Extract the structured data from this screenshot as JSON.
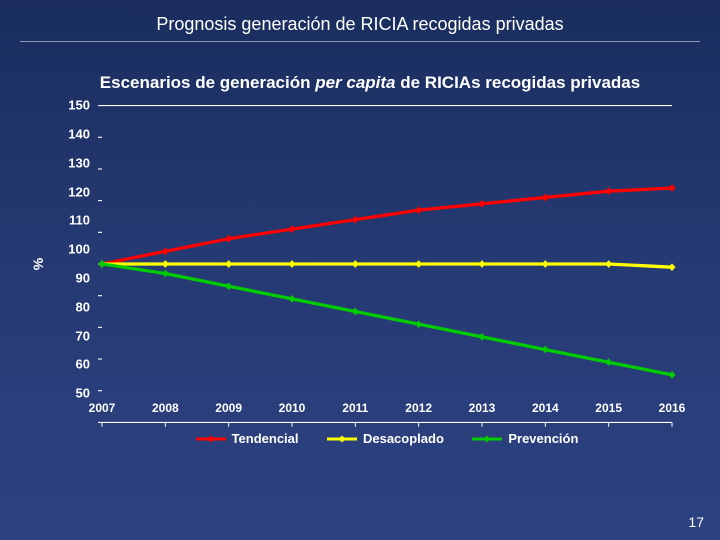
{
  "page": {
    "title": "Prognosis generación de RICIA recogidas privadas",
    "page_number": "17"
  },
  "chart": {
    "type": "line",
    "title_part1": "Escenarios de generación ",
    "title_italic": "per capita",
    "title_part2": " de RICIAs recogidas privadas",
    "y_label": "%",
    "ylim": [
      50,
      150
    ],
    "xcategories": [
      "2007",
      "2008",
      "2009",
      "2010",
      "2011",
      "2012",
      "2013",
      "2014",
      "2015",
      "2016"
    ],
    "yticks": [
      50,
      60,
      70,
      80,
      90,
      100,
      110,
      120,
      130,
      140,
      150
    ],
    "plot_bg": "transparent",
    "grid_color": "rgba(255,255,255,0.4)",
    "axis_color": "#ffffff",
    "tick_font_size": 13,
    "line_width": 3,
    "marker_size": 3.5,
    "series": [
      {
        "name": "Tendencial",
        "color": "#ff0000",
        "values": [
          100,
          104,
          108,
          111,
          114,
          117,
          119,
          121,
          123,
          124
        ]
      },
      {
        "name": "Desacoplado",
        "color": "#ffff00",
        "values": [
          100,
          100,
          100,
          100,
          100,
          100,
          100,
          100,
          100,
          99
        ]
      },
      {
        "name": "Prevención",
        "color": "#00cc00",
        "values": [
          100,
          97,
          93,
          89,
          85,
          81,
          77,
          73,
          69,
          65
        ]
      }
    ],
    "legend": {
      "items": [
        {
          "label": "Tendencial",
          "color": "#ff0000"
        },
        {
          "label": "Desacoplado",
          "color": "#ffff00"
        },
        {
          "label": "Prevención",
          "color": "#00cc00"
        }
      ]
    }
  }
}
